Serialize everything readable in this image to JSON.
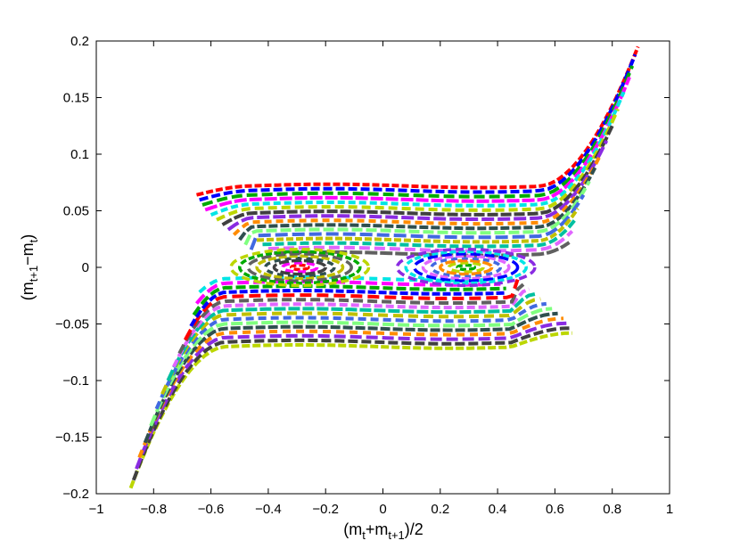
{
  "chart_data": {
    "type": "line",
    "title": "",
    "xlabel": {
      "base": "(m",
      "sub1": "t",
      "mid": "+m",
      "sub2": "t+1",
      "end": ")/2"
    },
    "ylabel": {
      "base": "(m",
      "sub1": "t+1",
      "mid": "−m",
      "sub2": "t",
      "end": ")"
    },
    "xlim": [
      -1,
      1
    ],
    "ylim": [
      -0.2,
      0.2
    ],
    "xticks": [
      -1,
      -0.8,
      -0.6,
      -0.4,
      -0.2,
      0,
      0.2,
      0.4,
      0.6,
      0.8,
      1
    ],
    "xtick_labels": [
      "−1",
      "−0.8",
      "−0.6",
      "−0.4",
      "−0.2",
      "0",
      "0.2",
      "0.4",
      "0.6",
      "0.8",
      "1"
    ],
    "yticks": [
      -0.2,
      -0.15,
      -0.1,
      -0.05,
      0,
      0.05,
      0.1,
      0.15,
      0.2
    ],
    "ytick_labels": [
      "−0.2",
      "−0.15",
      "−0.1",
      "−0.05",
      "0",
      "0.05",
      "0.1",
      "0.15",
      "0.2"
    ],
    "grid": false,
    "legend": "none",
    "palette": [
      "#ff0000",
      "#0000ff",
      "#00aa00",
      "#ff00ff",
      "#00e5e5",
      "#bcd600",
      "#404040",
      "#8a2be2",
      "#ff8c00",
      "#2f4f4f",
      "#7fff7f",
      "#4169e1",
      "#c0c000",
      "#00bfa0",
      "#e066ff",
      "#606060"
    ],
    "line_style": "dashed, thick",
    "upper_band": {
      "description": "trajectories with m_{t+1}-m_t > 0",
      "count": 16,
      "x_start": [
        -0.65,
        -0.64,
        -0.63,
        -0.62,
        -0.6,
        -0.58,
        -0.56,
        -0.54,
        -0.52,
        -0.5,
        -0.48,
        -0.46,
        -0.44,
        -0.42,
        -0.4,
        -0.38
      ],
      "plateau_y": [
        0.072,
        0.068,
        0.064,
        0.06,
        0.056,
        0.052,
        0.048,
        0.044,
        0.04,
        0.036,
        0.032,
        0.028,
        0.024,
        0.02,
        0.016,
        0.012
      ],
      "x_end": [
        0.89,
        0.88,
        0.87,
        0.86,
        0.84,
        0.82,
        0.8,
        0.78,
        0.76,
        0.74,
        0.72,
        0.7,
        0.68,
        0.67,
        0.66,
        0.65
      ],
      "y_end": [
        0.195,
        0.188,
        0.178,
        0.168,
        0.155,
        0.14,
        0.125,
        0.112,
        0.1,
        0.088,
        0.076,
        0.064,
        0.052,
        0.042,
        0.032,
        0.022
      ]
    },
    "lower_band": {
      "description": "trajectories with m_{t+1}-m_t < 0 (point-symmetric to upper band)",
      "count": 16,
      "x_start": [
        -0.88,
        -0.87,
        -0.86,
        -0.85,
        -0.83,
        -0.81,
        -0.79,
        -0.77,
        -0.75,
        -0.73,
        -0.71,
        -0.69,
        -0.67,
        -0.66,
        -0.65,
        -0.64
      ],
      "y_start": [
        -0.195,
        -0.188,
        -0.178,
        -0.168,
        -0.155,
        -0.14,
        -0.125,
        -0.112,
        -0.1,
        -0.088,
        -0.076,
        -0.064,
        -0.052,
        -0.042,
        -0.032,
        -0.022
      ],
      "plateau_y": [
        -0.07,
        -0.066,
        -0.062,
        -0.058,
        -0.054,
        -0.05,
        -0.046,
        -0.042,
        -0.038,
        -0.034,
        -0.03,
        -0.026,
        -0.022,
        -0.018,
        -0.014,
        -0.01
      ],
      "x_end": [
        0.66,
        0.65,
        0.64,
        0.63,
        0.61,
        0.59,
        0.57,
        0.55,
        0.53,
        0.51,
        0.49,
        0.47,
        0.45,
        0.43,
        0.41,
        0.39
      ]
    },
    "orbits": {
      "description": "closed orbits around two centres",
      "centers": [
        [
          -0.29,
          0.0
        ],
        [
          0.29,
          0.0
        ]
      ],
      "radii_x": [
        0.03,
        0.06,
        0.09,
        0.12,
        0.15,
        0.18,
        0.21,
        0.24
      ],
      "radii_y": [
        0.002,
        0.004,
        0.006,
        0.008,
        0.01,
        0.012,
        0.014,
        0.016
      ]
    }
  }
}
